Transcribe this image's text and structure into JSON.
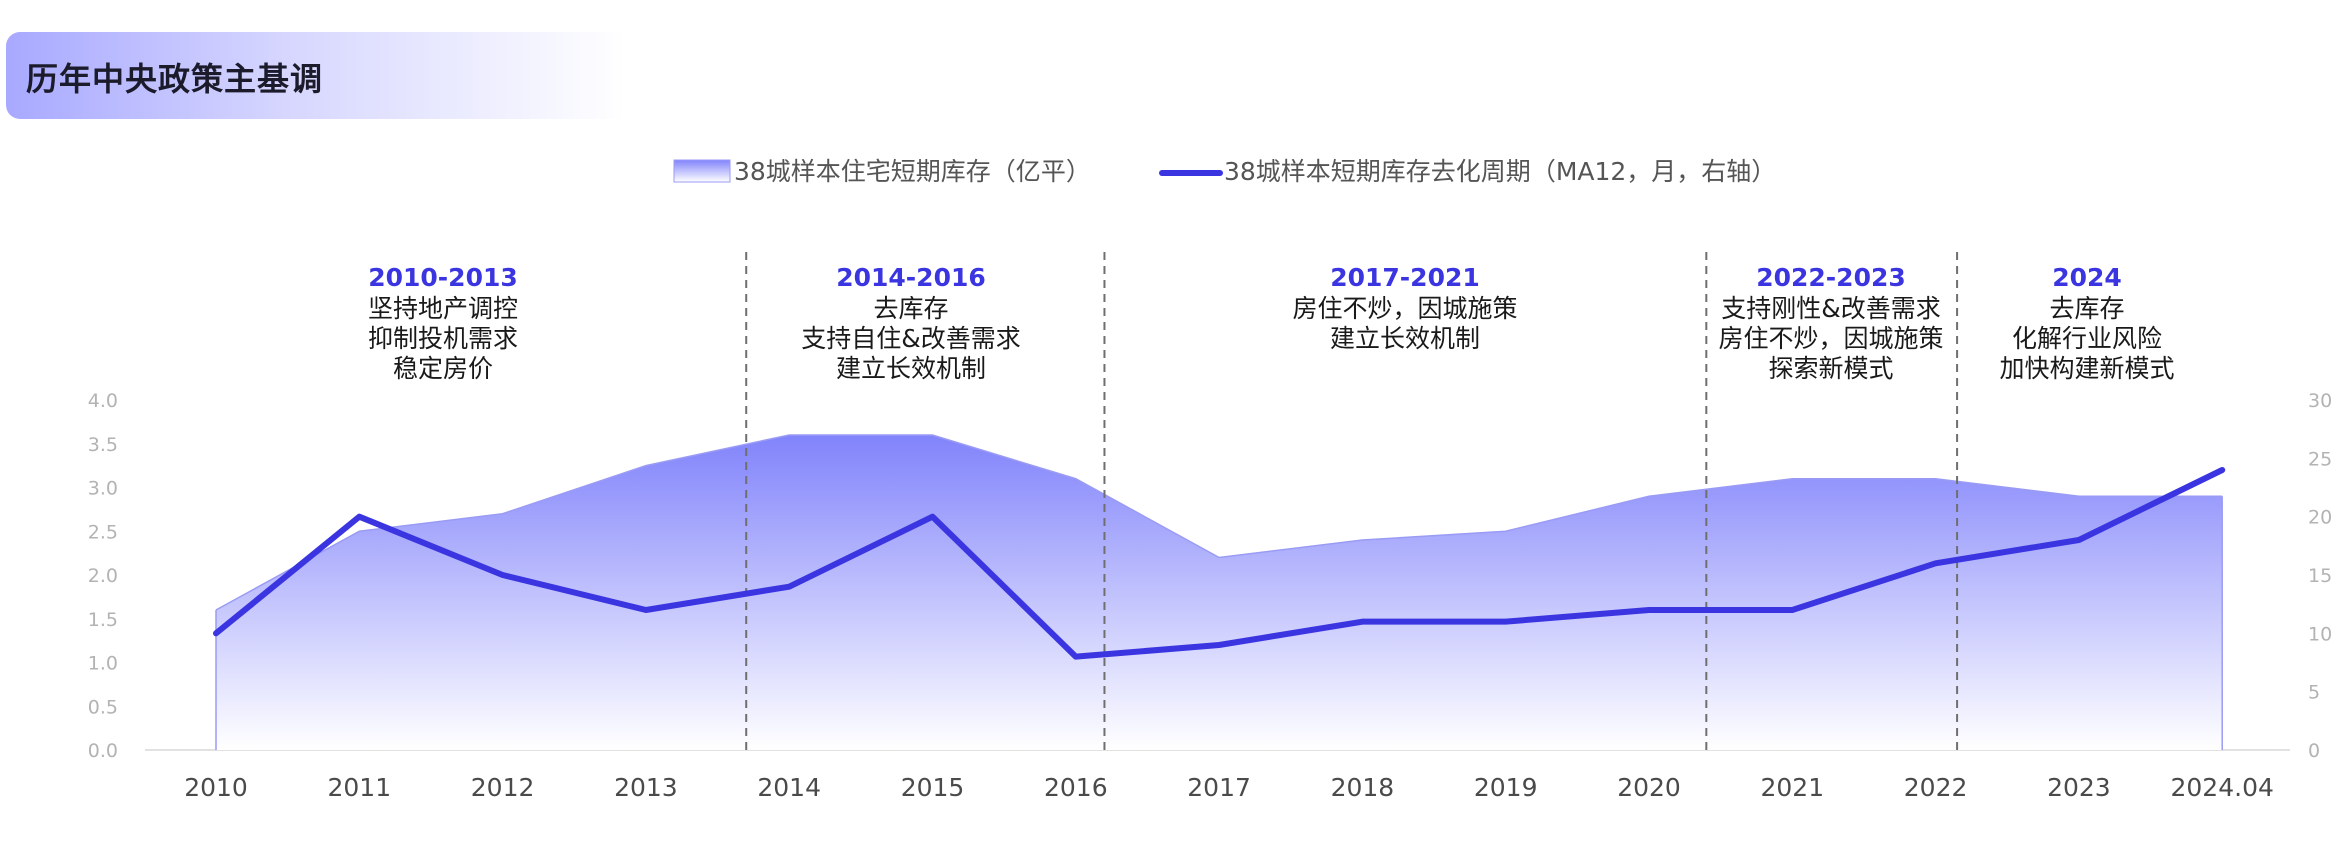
{
  "header": {
    "title": "历年中央政策主基调"
  },
  "colors": {
    "line": "#3a35e0",
    "area_top": "#8183fb",
    "area_bottom": "#ffffff",
    "period_title": "#3a35e0"
  },
  "legend": {
    "area_label": "38城样本住宅短期库存（亿平）",
    "line_label": "38城样本短期库存去化周期（MA12，月，右轴）"
  },
  "periods": [
    {
      "title": "2010-2013",
      "lines": [
        "坚持地产调控",
        "抑制投机需求",
        "稳定房价"
      ]
    },
    {
      "title": "2014-2016",
      "lines": [
        "去库存",
        "支持自住&改善需求",
        "建立长效机制"
      ]
    },
    {
      "title": "2017-2021",
      "lines": [
        "房住不炒，因城施策",
        "建立长效机制"
      ]
    },
    {
      "title": "2022-2023",
      "lines": [
        "支持刚性&改善需求",
        "房住不炒，因城施策",
        "探索新模式"
      ]
    },
    {
      "title": "2024",
      "lines": [
        "去库存",
        "化解行业风险",
        "加快构建新模式"
      ]
    }
  ],
  "chart_data": {
    "type": "area+line",
    "title": "历年中央政策主基调",
    "categories": [
      "2010",
      "2011",
      "2012",
      "2013",
      "2014",
      "2015",
      "2016",
      "2017",
      "2018",
      "2019",
      "2020",
      "2021",
      "2022",
      "2023",
      "2024.04"
    ],
    "series": [
      {
        "name": "38城样本住宅短期库存（亿平）",
        "type": "area",
        "axis": "left",
        "values": [
          1.6,
          2.5,
          2.7,
          3.25,
          3.6,
          3.6,
          3.1,
          2.2,
          2.4,
          2.5,
          2.9,
          3.1,
          3.1,
          2.9,
          2.9
        ]
      },
      {
        "name": "38城样本短期库存去化周期（MA12，月，右轴）",
        "type": "line",
        "axis": "right",
        "values": [
          10,
          20,
          15,
          12,
          14,
          20,
          8,
          9,
          11,
          11,
          12,
          12,
          16,
          18,
          24
        ]
      }
    ],
    "y_left": {
      "min": 0,
      "max": 4.0,
      "ticks": [
        "0.0",
        "0.5",
        "1.0",
        "1.5",
        "2.0",
        "2.5",
        "3.0",
        "3.5",
        "4.0"
      ]
    },
    "y_right": {
      "min": 0,
      "max": 30,
      "ticks": [
        "0",
        "5",
        "10",
        "15",
        "20",
        "25",
        "30"
      ]
    },
    "dividers_after_index": [
      3.7,
      6.2,
      10.4,
      12.15
    ],
    "legend_position": "top-center"
  }
}
